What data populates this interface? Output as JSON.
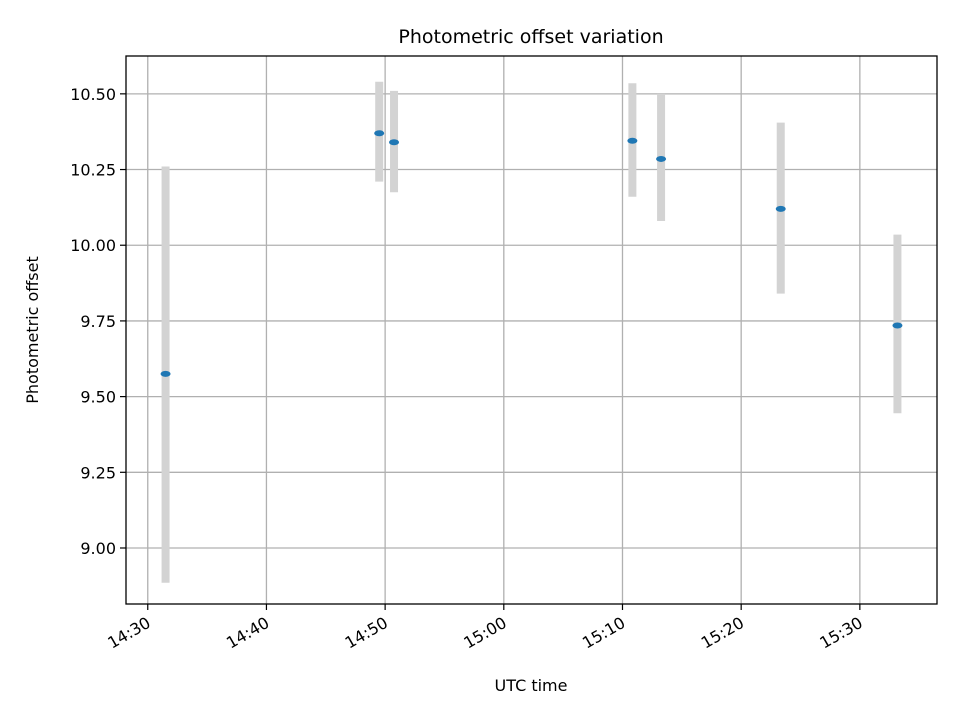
{
  "chart_data": {
    "type": "scatter",
    "title": "Photometric offset variation",
    "xlabel": "UTC time",
    "ylabel": "Photometric offset",
    "x_ticks": [
      "14:30",
      "14:40",
      "14:50",
      "15:00",
      "15:10",
      "15:20",
      "15:30"
    ],
    "y_ticks": [
      "9.00",
      "9.25",
      "9.50",
      "9.75",
      "10.00",
      "10.25",
      "10.50"
    ],
    "xlim": [
      "14:28:10",
      "15:36:30"
    ],
    "ylim": [
      8.815,
      10.625
    ],
    "grid": true,
    "points": [
      {
        "x": "14:31:30",
        "y": 9.575,
        "err_low": 8.885,
        "err_high": 10.26
      },
      {
        "x": "14:49:30",
        "y": 10.37,
        "err_low": 10.21,
        "err_high": 10.54
      },
      {
        "x": "14:50:45",
        "y": 10.34,
        "err_low": 10.175,
        "err_high": 10.51
      },
      {
        "x": "15:10:50",
        "y": 10.345,
        "err_low": 10.16,
        "err_high": 10.535
      },
      {
        "x": "15:13:15",
        "y": 10.285,
        "err_low": 10.08,
        "err_high": 10.5
      },
      {
        "x": "15:23:20",
        "y": 10.12,
        "err_low": 9.84,
        "err_high": 10.405
      },
      {
        "x": "15:33:10",
        "y": 9.735,
        "err_low": 9.445,
        "err_high": 10.035
      }
    ],
    "colors": {
      "marker": "#1f77b4",
      "errorbar": "#d3d3d3",
      "grid": "#b0b0b0"
    }
  }
}
